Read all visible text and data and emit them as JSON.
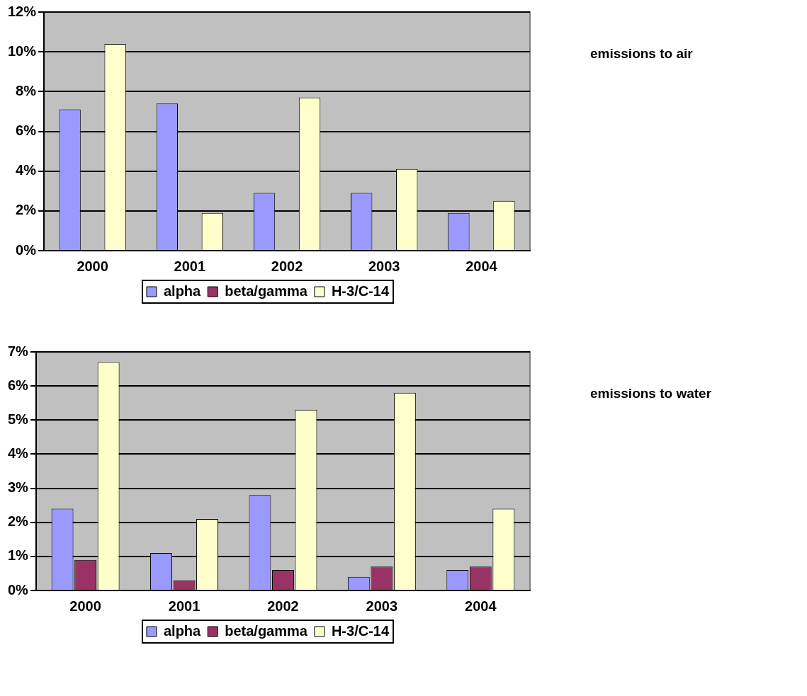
{
  "chart_data": [
    {
      "type": "bar",
      "annotations": [
        "emissions to air"
      ],
      "categories": [
        "2000",
        "2001",
        "2002",
        "2003",
        "2004"
      ],
      "series": [
        {
          "name": "alpha",
          "color": "#9999ff",
          "values": [
            7.1,
            7.4,
            2.9,
            2.9,
            1.9
          ]
        },
        {
          "name": "beta/gamma",
          "color": "#993366",
          "values": [
            0,
            0,
            0,
            0,
            0
          ]
        },
        {
          "name": "H-3/C-14",
          "color": "#ffffcc",
          "values": [
            10.4,
            1.9,
            7.7,
            4.1,
            2.5
          ]
        }
      ],
      "ylim": [
        0,
        12
      ],
      "yticks": [
        {
          "value": 0,
          "label": "0%"
        },
        {
          "value": 2,
          "label": "2%"
        },
        {
          "value": 4,
          "label": "4%"
        },
        {
          "value": 6,
          "label": "6%"
        },
        {
          "value": 8,
          "label": "8%"
        },
        {
          "value": 10,
          "label": "10%"
        },
        {
          "value": 12,
          "label": "12%"
        }
      ],
      "grid": "y",
      "legend": "bottom"
    },
    {
      "type": "bar",
      "annotations": [
        "emissions to water"
      ],
      "categories": [
        "2000",
        "2001",
        "2002",
        "2003",
        "2004"
      ],
      "series": [
        {
          "name": "alpha",
          "color": "#9999ff",
          "values": [
            2.4,
            1.1,
            2.8,
            0.4,
            0.6
          ]
        },
        {
          "name": "beta/gamma",
          "color": "#993366",
          "values": [
            0.9,
            0.3,
            0.6,
            0.7,
            0.7
          ]
        },
        {
          "name": "H-3/C-14",
          "color": "#ffffcc",
          "values": [
            6.7,
            2.1,
            5.3,
            5.8,
            2.4
          ]
        }
      ],
      "ylim": [
        0,
        7
      ],
      "yticks": [
        {
          "value": 0,
          "label": "0%"
        },
        {
          "value": 1,
          "label": "1%"
        },
        {
          "value": 2,
          "label": "2%"
        },
        {
          "value": 3,
          "label": "3%"
        },
        {
          "value": 4,
          "label": "4%"
        },
        {
          "value": 5,
          "label": "5%"
        },
        {
          "value": 6,
          "label": "6%"
        },
        {
          "value": 7,
          "label": "7%"
        }
      ],
      "grid": "y",
      "legend": "bottom"
    }
  ]
}
